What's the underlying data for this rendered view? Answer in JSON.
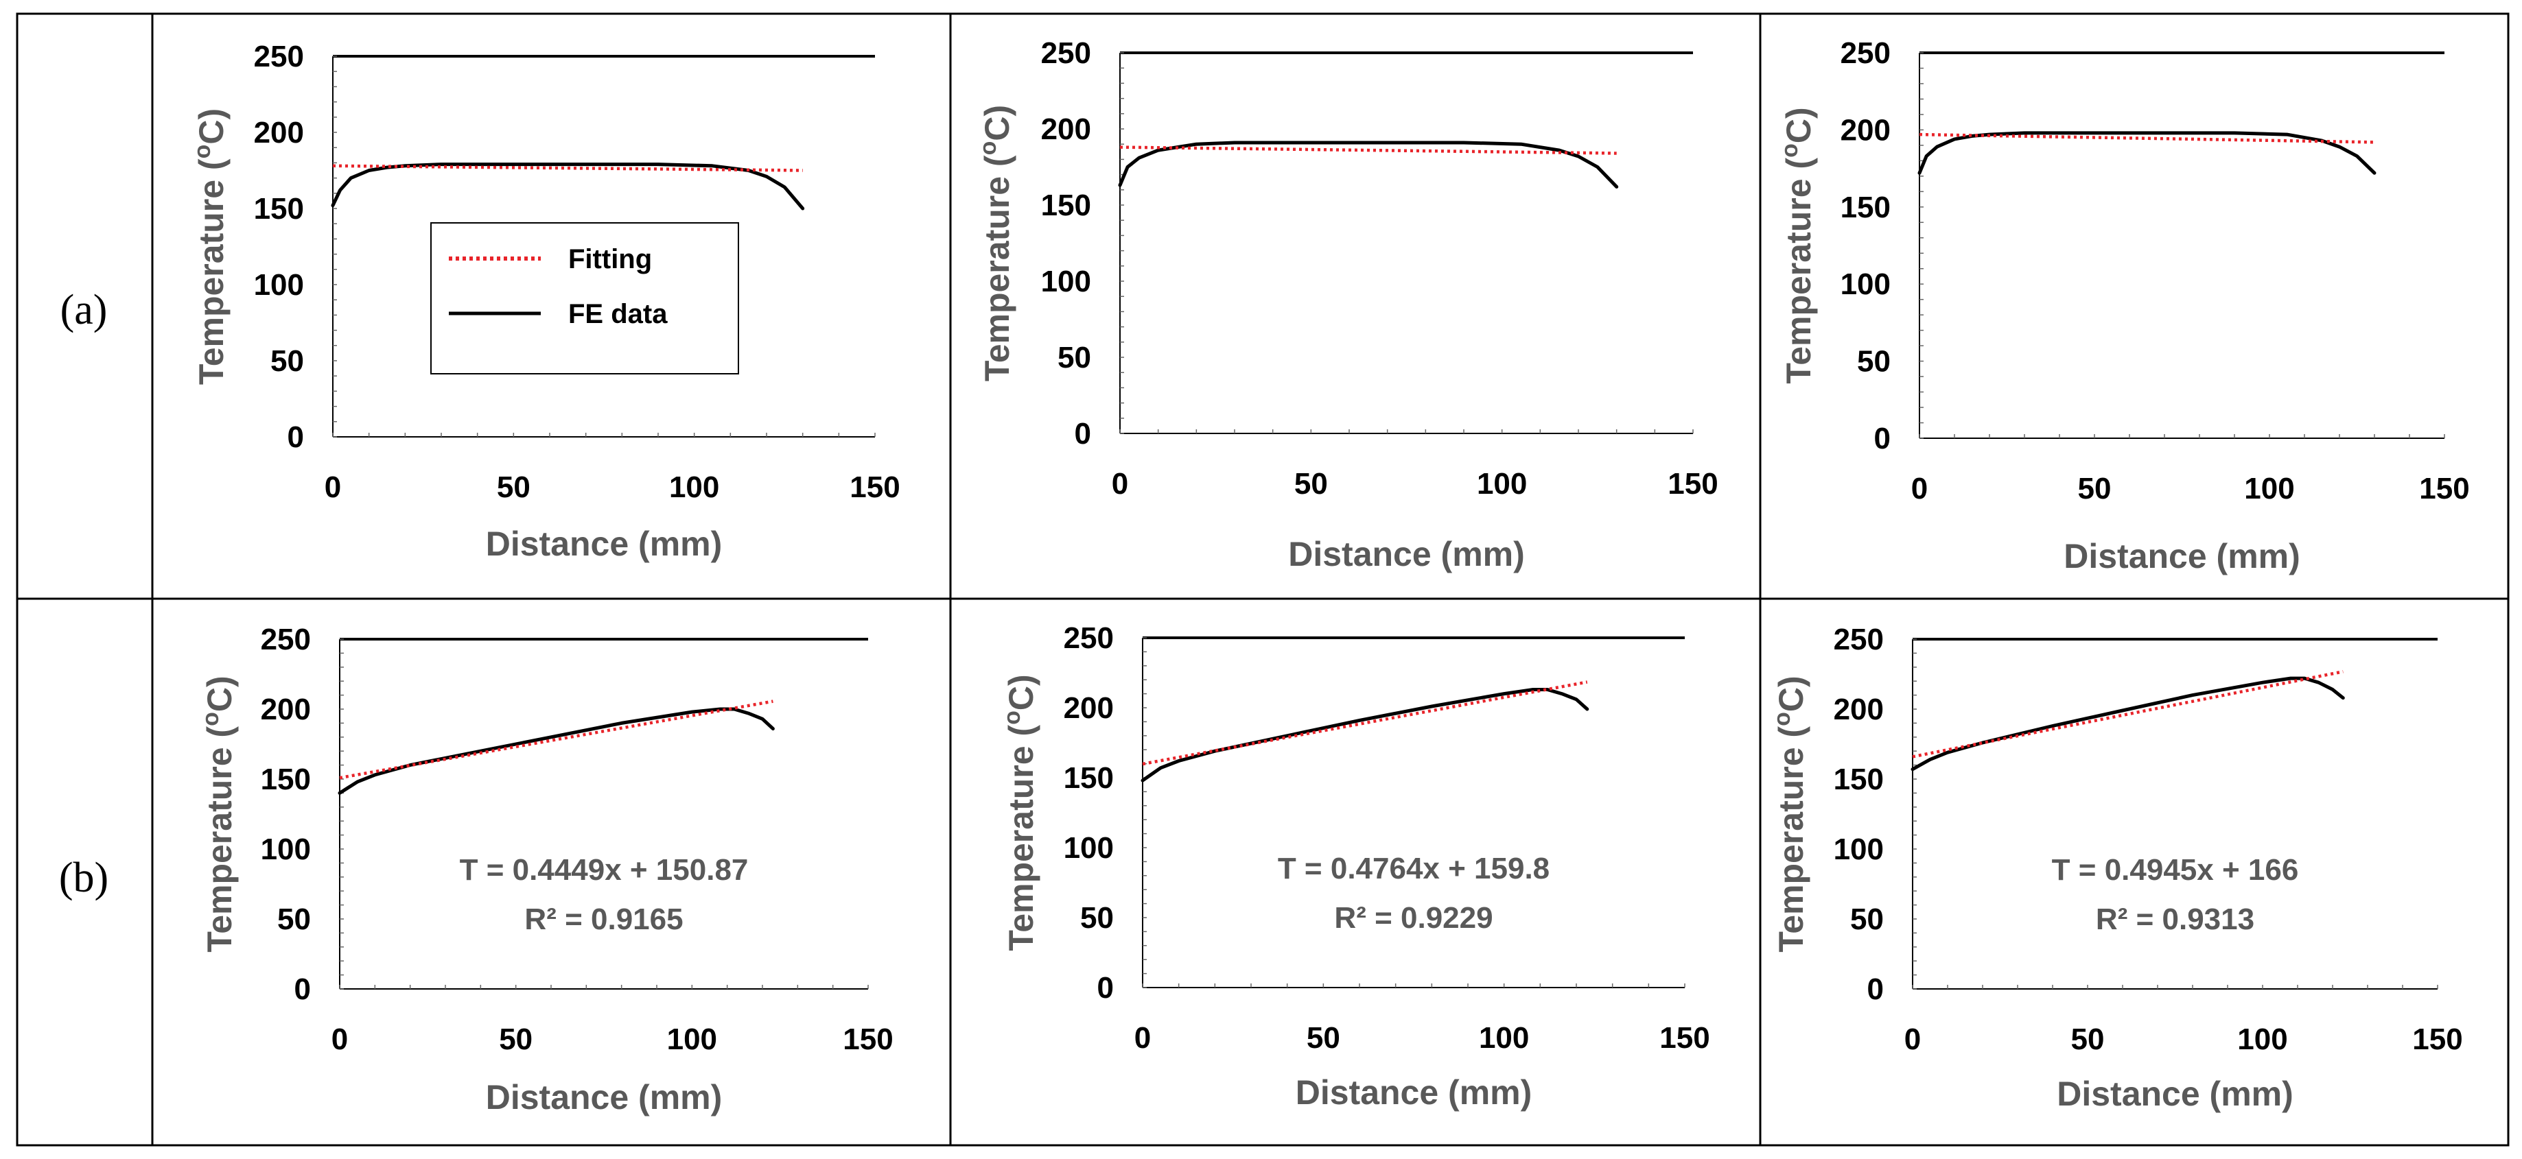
{
  "row_labels": [
    "(a)",
    "(b)"
  ],
  "legend": {
    "fitting": "Fitting",
    "fe_data": "FE data"
  },
  "colors": {
    "fe": "#000000",
    "fit": "#e8242a",
    "axis_title": "#595959",
    "grid": "#000000"
  },
  "chart_data": [
    {
      "type": "line",
      "panel": "a1",
      "xlabel": "Distance (mm)",
      "ylabel": "Temperature (oC)",
      "xlim": [
        0,
        150
      ],
      "ylim": [
        0,
        250
      ],
      "xticks": [
        0,
        50,
        100,
        150
      ],
      "yticks": [
        0,
        50,
        100,
        150,
        200,
        250
      ],
      "legend_shown": true,
      "annotation": [],
      "series": [
        {
          "name": "FE data",
          "style": "solid",
          "x": [
            0,
            2,
            5,
            10,
            15,
            20,
            30,
            60,
            90,
            105,
            115,
            120,
            125,
            130
          ],
          "y": [
            152,
            162,
            170,
            175,
            177,
            178,
            179,
            179,
            179,
            178,
            175,
            171,
            164,
            150
          ]
        },
        {
          "name": "Fitting",
          "style": "dotted",
          "x": [
            0,
            130
          ],
          "y": [
            178,
            175
          ]
        }
      ]
    },
    {
      "type": "line",
      "panel": "a2",
      "xlabel": "Distance (mm)",
      "ylabel": "Temperature (oC)",
      "xlim": [
        0,
        150
      ],
      "ylim": [
        0,
        250
      ],
      "xticks": [
        0,
        50,
        100,
        150
      ],
      "yticks": [
        0,
        50,
        100,
        150,
        200,
        250
      ],
      "legend_shown": false,
      "annotation": [],
      "series": [
        {
          "name": "FE data",
          "style": "solid",
          "x": [
            0,
            2,
            5,
            10,
            15,
            20,
            30,
            60,
            90,
            105,
            115,
            120,
            125,
            130
          ],
          "y": [
            163,
            175,
            181,
            186,
            188,
            190,
            191,
            191,
            191,
            190,
            186,
            182,
            175,
            162
          ]
        },
        {
          "name": "Fitting",
          "style": "dotted",
          "x": [
            0,
            130
          ],
          "y": [
            188,
            184
          ]
        }
      ]
    },
    {
      "type": "line",
      "panel": "a3",
      "xlabel": "Distance (mm)",
      "ylabel": "Temperature (oC)",
      "xlim": [
        0,
        150
      ],
      "ylim": [
        0,
        250
      ],
      "xticks": [
        0,
        50,
        100,
        150
      ],
      "yticks": [
        0,
        50,
        100,
        150,
        200,
        250
      ],
      "legend_shown": false,
      "annotation": [],
      "series": [
        {
          "name": "FE data",
          "style": "solid",
          "x": [
            0,
            2,
            5,
            10,
            15,
            20,
            30,
            60,
            90,
            105,
            115,
            120,
            125,
            130
          ],
          "y": [
            172,
            183,
            189,
            194,
            196,
            197,
            198,
            198,
            198,
            197,
            193,
            189,
            183,
            172
          ]
        },
        {
          "name": "Fitting",
          "style": "dotted",
          "x": [
            0,
            130
          ],
          "y": [
            197,
            192
          ]
        }
      ]
    },
    {
      "type": "line",
      "panel": "b1",
      "xlabel": "Distance (mm)",
      "ylabel": "Temperature (oC)",
      "xlim": [
        0,
        150
      ],
      "ylim": [
        0,
        250
      ],
      "xticks": [
        0,
        50,
        100,
        150
      ],
      "yticks": [
        0,
        50,
        100,
        150,
        200,
        250
      ],
      "legend_shown": false,
      "annotation": [
        "T = 0.4449x + 150.87",
        "R² = 0.9165"
      ],
      "series": [
        {
          "name": "FE data",
          "style": "solid",
          "x": [
            0,
            5,
            10,
            20,
            40,
            60,
            80,
            100,
            108,
            112,
            116,
            120,
            123
          ],
          "y": [
            140,
            148,
            153,
            160,
            170,
            180,
            190,
            198,
            200,
            200,
            197,
            193,
            186
          ]
        },
        {
          "name": "Fitting",
          "style": "dotted",
          "x": [
            0,
            123
          ],
          "y": [
            150.87,
            205.6
          ]
        }
      ]
    },
    {
      "type": "line",
      "panel": "b2",
      "xlabel": "Distance (mm)",
      "ylabel": "Temperature (oC)",
      "xlim": [
        0,
        150
      ],
      "ylim": [
        0,
        250
      ],
      "xticks": [
        0,
        50,
        100,
        150
      ],
      "yticks": [
        0,
        50,
        100,
        150,
        200,
        250
      ],
      "legend_shown": false,
      "annotation": [
        "T = 0.4764x + 159.8",
        "R² = 0.9229"
      ],
      "series": [
        {
          "name": "FE data",
          "style": "solid",
          "x": [
            0,
            5,
            10,
            20,
            40,
            60,
            80,
            100,
            108,
            112,
            116,
            120,
            123
          ],
          "y": [
            148,
            157,
            162,
            169,
            180,
            191,
            201,
            210,
            213,
            213,
            210,
            206,
            199
          ]
        },
        {
          "name": "Fitting",
          "style": "dotted",
          "x": [
            0,
            123
          ],
          "y": [
            159.8,
            218.4
          ]
        }
      ]
    },
    {
      "type": "line",
      "panel": "b3",
      "xlabel": "Distance (mm)",
      "ylabel": "Temperature (oC)",
      "xlim": [
        0,
        150
      ],
      "ylim": [
        0,
        250
      ],
      "xticks": [
        0,
        50,
        100,
        150
      ],
      "yticks": [
        0,
        50,
        100,
        150,
        200,
        250
      ],
      "legend_shown": false,
      "annotation": [
        "T = 0.4945x + 166",
        "R² = 0.9313"
      ],
      "series": [
        {
          "name": "FE data",
          "style": "solid",
          "x": [
            0,
            5,
            10,
            20,
            40,
            60,
            80,
            100,
            108,
            112,
            116,
            120,
            123
          ],
          "y": [
            157,
            164,
            169,
            176,
            188,
            199,
            210,
            219,
            222,
            222,
            219,
            214,
            208
          ]
        },
        {
          "name": "Fitting",
          "style": "dotted",
          "x": [
            0,
            123
          ],
          "y": [
            166,
            226.8
          ]
        }
      ]
    }
  ]
}
